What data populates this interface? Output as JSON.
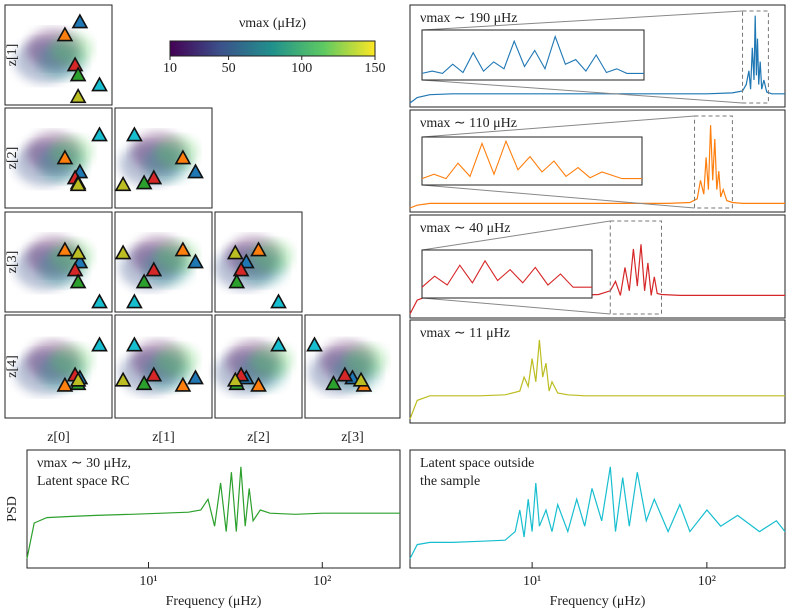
{
  "chart_data": [
    {
      "type": "scatter",
      "xlabels": [
        "z[0]",
        "z[1]",
        "z[2]",
        "z[3]"
      ],
      "ylabels": [
        "z[1]",
        "z[2]",
        "z[3]",
        "z[4]"
      ],
      "zlim": [
        -3,
        3
      ],
      "points": [
        {
          "color": "#1f77b4",
          "z": [
            1.2,
            1.98,
            -0.84,
            0,
            -0.67
          ]
        },
        {
          "color": "#ff7f0e",
          "z": [
            0.36,
            1.2,
            0,
            0.72,
            -1.1
          ]
        },
        {
          "color": "#d62728",
          "z": [
            0.93,
            -0.6,
            -1.2,
            -0.48,
            -0.5
          ]
        },
        {
          "color": "#2ca02c",
          "z": [
            1.1,
            -1.2,
            -1.5,
            -1.2,
            -1.0
          ]
        },
        {
          "color": "#17becf",
          "z": [
            2.3,
            -1.8,
            1.38,
            -2.4,
            1.25
          ]
        },
        {
          "color": "#bcbd22",
          "z": [
            1.1,
            -2.5,
            -1.6,
            0.54,
            -0.8
          ]
        }
      ],
      "colorbar": {
        "label": "νmax (μHz)",
        "lim": [
          10,
          150
        ],
        "ticks": [
          10,
          50,
          100,
          150
        ]
      }
    },
    {
      "type": "line",
      "title": [
        "νmax ∼ 190 μHz"
      ],
      "color": "#1f77b4",
      "log_x": true,
      "xlim": [
        2,
        280
      ],
      "ylim": [
        0,
        1
      ],
      "x": [
        2,
        2.2,
        2.6,
        3.5,
        5,
        8,
        12,
        20,
        35,
        60,
        100,
        140,
        160,
        168,
        174,
        178,
        182,
        186,
        189,
        192,
        195,
        198,
        202,
        206,
        212,
        220,
        235,
        260,
        280
      ],
      "values": [
        0,
        0.06,
        0.09,
        0.1,
        0.1,
        0.1,
        0.1,
        0.1,
        0.1,
        0.1,
        0.1,
        0.11,
        0.13,
        0.2,
        0.35,
        0.15,
        0.6,
        0.25,
        0.95,
        0.3,
        0.7,
        0.2,
        0.45,
        0.15,
        0.25,
        0.12,
        0.1,
        0.1,
        0.1
      ],
      "inset": {
        "xlim": [
          160,
          225
        ],
        "ylim": [
          0,
          1
        ],
        "x": [
          160,
          163,
          166,
          169,
          172,
          175,
          178,
          181,
          184,
          187,
          190,
          193,
          196,
          199,
          202,
          205,
          208,
          211,
          214,
          217,
          220,
          225
        ],
        "values": [
          0.1,
          0.15,
          0.1,
          0.3,
          0.12,
          0.55,
          0.15,
          0.35,
          0.2,
          0.8,
          0.25,
          0.6,
          0.2,
          0.9,
          0.3,
          0.4,
          0.15,
          0.5,
          0.12,
          0.2,
          0.1,
          0.1
        ]
      }
    },
    {
      "type": "line",
      "title": [
        "νmax ∼ 110 μHz"
      ],
      "color": "#ff7f0e",
      "log_x": true,
      "xlim": [
        2,
        280
      ],
      "ylim": [
        0,
        1
      ],
      "x": [
        2,
        2.2,
        2.6,
        3.5,
        5,
        8,
        12,
        20,
        35,
        60,
        80,
        88,
        92,
        96,
        99,
        102,
        105,
        108,
        111,
        114,
        117,
        120,
        124,
        130,
        140,
        160,
        200,
        280
      ],
      "values": [
        0,
        0.03,
        0.05,
        0.05,
        0.05,
        0.05,
        0.05,
        0.05,
        0.05,
        0.05,
        0.06,
        0.1,
        0.3,
        0.15,
        0.55,
        0.2,
        0.9,
        0.3,
        0.75,
        0.2,
        0.4,
        0.12,
        0.2,
        0.08,
        0.06,
        0.05,
        0.05,
        0.05
      ],
      "inset": {
        "xlim": [
          85,
          140
        ],
        "ylim": [
          0,
          1
        ],
        "x": [
          85,
          88,
          91,
          94,
          97,
          100,
          103,
          106,
          109,
          112,
          115,
          118,
          121,
          124,
          127,
          130,
          135,
          140
        ],
        "values": [
          0.1,
          0.2,
          0.1,
          0.45,
          0.15,
          0.9,
          0.2,
          0.95,
          0.3,
          0.6,
          0.25,
          0.5,
          0.15,
          0.35,
          0.12,
          0.25,
          0.1,
          0.1
        ]
      }
    },
    {
      "type": "line",
      "title": [
        "νmax ∼ 40 μHz"
      ],
      "color": "#d62728",
      "log_x": true,
      "xlim": [
        2,
        280
      ],
      "ylim": [
        0,
        1
      ],
      "x": [
        2,
        2.2,
        2.6,
        3.5,
        5,
        8,
        12,
        18,
        24,
        28,
        30,
        32,
        34,
        36,
        38,
        40,
        42,
        44,
        46,
        48,
        50,
        52,
        55,
        70,
        100,
        150,
        200,
        280
      ],
      "values": [
        0,
        0.15,
        0.2,
        0.2,
        0.2,
        0.2,
        0.2,
        0.2,
        0.21,
        0.25,
        0.35,
        0.2,
        0.5,
        0.25,
        0.7,
        0.3,
        0.75,
        0.25,
        0.55,
        0.2,
        0.4,
        0.22,
        0.21,
        0.2,
        0.2,
        0.2,
        0.2,
        0.2
      ],
      "inset": {
        "xlim": [
          28,
          55
        ],
        "ylim": [
          0,
          1
        ],
        "x": [
          28,
          30,
          32,
          34,
          36,
          38,
          40,
          42,
          44,
          46,
          48,
          50,
          52,
          55
        ],
        "values": [
          0.2,
          0.45,
          0.25,
          0.7,
          0.3,
          0.8,
          0.35,
          0.6,
          0.3,
          0.65,
          0.25,
          0.5,
          0.2,
          0.2
        ]
      }
    },
    {
      "type": "line",
      "title": [
        "νmax ∼ 11 μHz"
      ],
      "color": "#bcbd22",
      "log_x": true,
      "xlim": [
        2,
        280
      ],
      "ylim": [
        0,
        1
      ],
      "x": [
        2,
        2.2,
        2.6,
        3.5,
        5,
        7,
        8.5,
        9,
        9.5,
        10,
        10.5,
        11,
        11.5,
        12,
        12.5,
        13,
        14,
        16,
        20,
        40,
        80,
        150,
        280
      ],
      "values": [
        0,
        0.2,
        0.25,
        0.25,
        0.25,
        0.26,
        0.3,
        0.45,
        0.35,
        0.65,
        0.4,
        0.85,
        0.45,
        0.6,
        0.3,
        0.4,
        0.28,
        0.26,
        0.25,
        0.25,
        0.25,
        0.25,
        0.25
      ]
    },
    {
      "type": "line",
      "title": [
        "νmax ∼ 30 μHz,",
        "Latent space RC"
      ],
      "color": "#2ca02c",
      "log_x": true,
      "xlim": [
        2,
        280
      ],
      "ylim": [
        0,
        1
      ],
      "xlabel": "Frequency (μHz)",
      "ylabel": "PSD",
      "xticks": [
        {
          "value": 10,
          "label": "10¹"
        },
        {
          "value": 100,
          "label": "10²"
        }
      ],
      "x": [
        2,
        2.2,
        2.6,
        3.5,
        5,
        8,
        12,
        17,
        20,
        22,
        24,
        26,
        28,
        30,
        32,
        34,
        36,
        38,
        40,
        44,
        50,
        70,
        100,
        150,
        280
      ],
      "values": [
        0.05,
        0.38,
        0.43,
        0.44,
        0.45,
        0.46,
        0.47,
        0.48,
        0.5,
        0.6,
        0.35,
        0.75,
        0.3,
        0.85,
        0.3,
        0.9,
        0.35,
        0.7,
        0.4,
        0.5,
        0.47,
        0.46,
        0.47,
        0.47,
        0.47
      ]
    },
    {
      "type": "line",
      "title": [
        "Latent space outside",
        "the sample"
      ],
      "color": "#17becf",
      "log_x": true,
      "xlim": [
        2,
        280
      ],
      "ylim": [
        0,
        1
      ],
      "xlabel": "Frequency (μHz)",
      "xticks": [
        {
          "value": 10,
          "label": "10¹"
        },
        {
          "value": 100,
          "label": "10²"
        }
      ],
      "x": [
        2,
        2.2,
        2.6,
        3.5,
        5,
        7,
        8,
        8.5,
        9,
        9.5,
        10,
        10.5,
        11,
        12,
        13,
        14,
        16,
        18,
        20,
        22,
        25,
        28,
        30,
        33,
        36,
        40,
        45,
        50,
        60,
        70,
        80,
        100,
        120,
        150,
        200,
        250,
        280
      ],
      "values": [
        0.05,
        0.18,
        0.2,
        0.2,
        0.21,
        0.22,
        0.3,
        0.5,
        0.25,
        0.6,
        0.3,
        0.75,
        0.35,
        0.5,
        0.3,
        0.55,
        0.3,
        0.6,
        0.35,
        0.7,
        0.4,
        0.9,
        0.3,
        0.8,
        0.35,
        0.85,
        0.4,
        0.6,
        0.3,
        0.55,
        0.3,
        0.5,
        0.35,
        0.45,
        0.3,
        0.4,
        0.3
      ]
    }
  ]
}
